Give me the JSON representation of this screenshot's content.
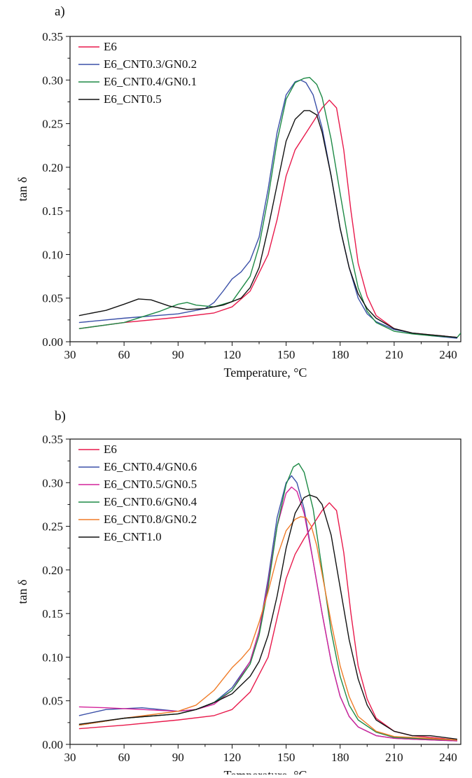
{
  "figure": {
    "panels": [
      {
        "panel_label": "a)",
        "xlabel": "Temperature, °C",
        "ylabel": "tan δ"
      },
      {
        "panel_label": "b)",
        "xlabel": "Temperature, °C",
        "ylabel": "tan δ"
      }
    ]
  },
  "chart_data": [
    {
      "type": "line",
      "panel_label": "a)",
      "xlabel": "Temperature, °C",
      "ylabel": "tan δ",
      "xlim": [
        30,
        247
      ],
      "ylim": [
        0,
        0.35
      ],
      "xticks": [
        "30",
        "60",
        "90",
        "120",
        "150",
        "180",
        "210",
        "240"
      ],
      "yticks": [
        "0.00",
        "0.05",
        "0.10",
        "0.15",
        "0.20",
        "0.25",
        "0.30",
        "0.35"
      ],
      "grid": false,
      "legend": "top-left",
      "series": [
        {
          "name": "E6",
          "color": "#e8194b",
          "x": [
            35,
            60,
            90,
            110,
            120,
            130,
            140,
            145,
            150,
            155,
            160,
            165,
            170,
            174,
            178,
            182,
            186,
            190,
            195,
            200,
            210,
            220,
            230,
            245
          ],
          "y": [
            0.015,
            0.022,
            0.028,
            0.033,
            0.04,
            0.058,
            0.1,
            0.14,
            0.19,
            0.22,
            0.236,
            0.252,
            0.268,
            0.277,
            0.268,
            0.22,
            0.15,
            0.09,
            0.052,
            0.03,
            0.015,
            0.01,
            0.008,
            0.005
          ]
        },
        {
          "name": "E6_CNT0.3/GN0.2",
          "color": "#3b50a8",
          "x": [
            35,
            60,
            90,
            105,
            110,
            115,
            120,
            125,
            130,
            135,
            140,
            145,
            150,
            155,
            158,
            161,
            165,
            170,
            175,
            180,
            185,
            190,
            195,
            200,
            210,
            220,
            230,
            245
          ],
          "y": [
            0.022,
            0.027,
            0.032,
            0.038,
            0.045,
            0.058,
            0.072,
            0.08,
            0.093,
            0.12,
            0.175,
            0.24,
            0.283,
            0.298,
            0.3,
            0.297,
            0.283,
            0.245,
            0.19,
            0.13,
            0.085,
            0.05,
            0.032,
            0.023,
            0.014,
            0.01,
            0.007,
            0.004
          ]
        },
        {
          "name": "E6_CNT0.4/GN0.1",
          "color": "#1e8a46",
          "x": [
            35,
            60,
            80,
            90,
            95,
            100,
            110,
            120,
            130,
            135,
            140,
            145,
            150,
            155,
            160,
            163,
            167,
            170,
            175,
            180,
            185,
            190,
            195,
            200,
            210,
            220,
            230,
            245,
            247
          ],
          "y": [
            0.015,
            0.022,
            0.035,
            0.043,
            0.045,
            0.042,
            0.04,
            0.046,
            0.075,
            0.11,
            0.165,
            0.23,
            0.278,
            0.297,
            0.302,
            0.303,
            0.295,
            0.28,
            0.232,
            0.17,
            0.11,
            0.062,
            0.035,
            0.022,
            0.012,
            0.009,
            0.007,
            0.005,
            0.01
          ]
        },
        {
          "name": "E6_CNT0.5",
          "color": "#111111",
          "x": [
            35,
            50,
            60,
            68,
            75,
            85,
            95,
            105,
            115,
            125,
            130,
            135,
            140,
            145,
            150,
            155,
            160,
            163,
            167,
            170,
            175,
            180,
            185,
            190,
            195,
            200,
            210,
            220,
            230,
            245
          ],
          "y": [
            0.03,
            0.036,
            0.043,
            0.049,
            0.048,
            0.041,
            0.037,
            0.038,
            0.042,
            0.05,
            0.062,
            0.085,
            0.13,
            0.18,
            0.23,
            0.255,
            0.265,
            0.265,
            0.26,
            0.24,
            0.19,
            0.13,
            0.085,
            0.055,
            0.038,
            0.027,
            0.015,
            0.01,
            0.008,
            0.005
          ]
        }
      ]
    },
    {
      "type": "line",
      "panel_label": "b)",
      "xlabel": "Temperature, °C",
      "ylabel": "tan δ",
      "xlim": [
        30,
        247
      ],
      "ylim": [
        0,
        0.35
      ],
      "xticks": [
        "30",
        "60",
        "90",
        "120",
        "150",
        "180",
        "210",
        "240"
      ],
      "yticks": [
        "0.00",
        "0.05",
        "0.10",
        "0.15",
        "0.20",
        "0.25",
        "0.30",
        "0.35"
      ],
      "grid": false,
      "legend": "top-left",
      "series": [
        {
          "name": "E6",
          "color": "#e8194b",
          "x": [
            35,
            60,
            90,
            110,
            120,
            130,
            140,
            145,
            150,
            155,
            160,
            165,
            170,
            174,
            178,
            182,
            186,
            190,
            195,
            200,
            210,
            220,
            230,
            245
          ],
          "y": [
            0.018,
            0.022,
            0.028,
            0.033,
            0.04,
            0.06,
            0.1,
            0.145,
            0.19,
            0.218,
            0.236,
            0.252,
            0.268,
            0.277,
            0.268,
            0.22,
            0.15,
            0.09,
            0.052,
            0.03,
            0.015,
            0.01,
            0.008,
            0.005
          ]
        },
        {
          "name": "E6_CNT0.4/GN0.6",
          "color": "#3b50a8",
          "x": [
            35,
            50,
            70,
            90,
            100,
            110,
            120,
            130,
            135,
            140,
            145,
            150,
            153,
            156,
            160,
            165,
            170,
            175,
            180,
            185,
            190,
            200,
            210,
            220,
            245
          ],
          "y": [
            0.033,
            0.04,
            0.042,
            0.038,
            0.04,
            0.048,
            0.065,
            0.095,
            0.13,
            0.19,
            0.26,
            0.3,
            0.308,
            0.3,
            0.27,
            0.21,
            0.15,
            0.095,
            0.055,
            0.032,
            0.02,
            0.01,
            0.007,
            0.006,
            0.004
          ]
        },
        {
          "name": "E6_CNT0.5/GN0.5",
          "color": "#d4239a",
          "x": [
            35,
            50,
            70,
            90,
            100,
            110,
            120,
            130,
            135,
            140,
            145,
            150,
            153,
            156,
            160,
            165,
            170,
            175,
            180,
            185,
            190,
            200,
            210,
            220,
            245
          ],
          "y": [
            0.043,
            0.042,
            0.04,
            0.038,
            0.04,
            0.046,
            0.062,
            0.095,
            0.13,
            0.185,
            0.25,
            0.288,
            0.295,
            0.29,
            0.265,
            0.21,
            0.15,
            0.095,
            0.055,
            0.032,
            0.02,
            0.01,
            0.007,
            0.006,
            0.004
          ]
        },
        {
          "name": "E6_CNT0.6/GN0.4",
          "color": "#1e8a46",
          "x": [
            35,
            60,
            90,
            100,
            110,
            120,
            130,
            135,
            140,
            145,
            150,
            154,
            157,
            160,
            165,
            170,
            175,
            180,
            185,
            190,
            200,
            210,
            220,
            245
          ],
          "y": [
            0.022,
            0.03,
            0.035,
            0.04,
            0.048,
            0.062,
            0.092,
            0.125,
            0.18,
            0.25,
            0.298,
            0.318,
            0.322,
            0.312,
            0.27,
            0.2,
            0.13,
            0.078,
            0.045,
            0.028,
            0.014,
            0.008,
            0.007,
            0.005
          ]
        },
        {
          "name": "E6_CNT0.8/GN0.2",
          "color": "#f07c28",
          "x": [
            35,
            60,
            90,
            100,
            110,
            115,
            120,
            125,
            130,
            135,
            140,
            145,
            150,
            155,
            158,
            161,
            164,
            167,
            170,
            175,
            180,
            185,
            190,
            200,
            210,
            220,
            245
          ],
          "y": [
            0.022,
            0.03,
            0.038,
            0.045,
            0.062,
            0.075,
            0.088,
            0.098,
            0.11,
            0.14,
            0.175,
            0.215,
            0.245,
            0.258,
            0.261,
            0.26,
            0.25,
            0.228,
            0.195,
            0.14,
            0.09,
            0.055,
            0.032,
            0.015,
            0.009,
            0.008,
            0.005
          ]
        },
        {
          "name": "E6_CNT1.0",
          "color": "#111111",
          "x": [
            35,
            60,
            90,
            100,
            110,
            120,
            130,
            135,
            140,
            145,
            150,
            155,
            160,
            163,
            167,
            170,
            175,
            180,
            185,
            190,
            195,
            200,
            210,
            220,
            230,
            245
          ],
          "y": [
            0.023,
            0.03,
            0.035,
            0.04,
            0.048,
            0.058,
            0.078,
            0.095,
            0.125,
            0.17,
            0.225,
            0.265,
            0.283,
            0.286,
            0.283,
            0.275,
            0.24,
            0.18,
            0.12,
            0.075,
            0.045,
            0.028,
            0.015,
            0.01,
            0.01,
            0.006
          ]
        }
      ]
    }
  ]
}
